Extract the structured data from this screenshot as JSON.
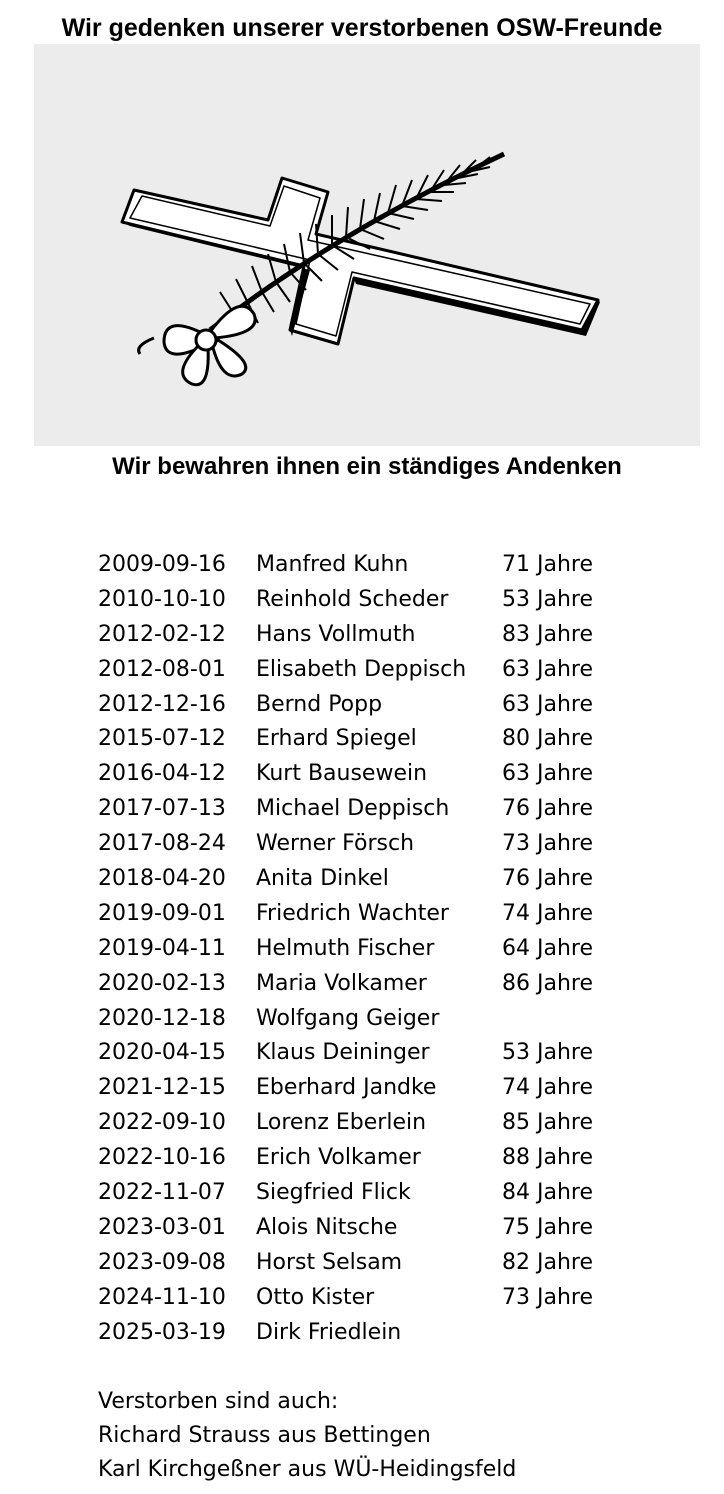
{
  "header": {
    "title": "Wir gedenken unserer verstorbenen OSW-Freunde",
    "subtitle": "Wir bewahren ihnen ein ständiges Andenken"
  },
  "illustration": {
    "icon": "cross-with-palm-branch-icon",
    "background": "#ececec"
  },
  "memorial": {
    "entries": [
      {
        "date": "2009-09-16",
        "name": "Manfred Kuhn",
        "age": "71 Jahre"
      },
      {
        "date": "2010-10-10",
        "name": "Reinhold Scheder",
        "age": "53 Jahre"
      },
      {
        "date": "2012-02-12",
        "name": "Hans Vollmuth",
        "age": "83 Jahre"
      },
      {
        "date": "2012-08-01",
        "name": "Elisabeth Deppisch",
        "age": "63 Jahre"
      },
      {
        "date": "2012-12-16",
        "name": "Bernd Popp",
        "age": "63 Jahre"
      },
      {
        "date": "2015-07-12",
        "name": "Erhard Spiegel",
        "age": "80 Jahre"
      },
      {
        "date": "2016-04-12",
        "name": "Kurt Bausewein",
        "age": "63 Jahre"
      },
      {
        "date": "2017-07-13",
        "name": "Michael Deppisch",
        "age": "76 Jahre"
      },
      {
        "date": "2017-08-24",
        "name": "Werner Försch",
        "age": "73 Jahre"
      },
      {
        "date": "2018-04-20",
        "name": "Anita Dinkel",
        "age": "76 Jahre"
      },
      {
        "date": "2019-09-01",
        "name": "Friedrich Wachter",
        "age": "74 Jahre"
      },
      {
        "date": "2019-04-11",
        "name": "Helmuth Fischer",
        "age": "64 Jahre"
      },
      {
        "date": "2020-02-13",
        "name": "Maria Volkamer",
        "age": "86 Jahre"
      },
      {
        "date": "2020-12-18",
        "name": "Wolfgang Geiger",
        "age": ""
      },
      {
        "date": "2020-04-15",
        "name": "Klaus Deininger",
        "age": "53 Jahre"
      },
      {
        "date": "2021-12-15",
        "name": "Eberhard Jandke",
        "age": "74 Jahre"
      },
      {
        "date": "2022-09-10",
        "name": "Lorenz Eberlein",
        "age": "85 Jahre"
      },
      {
        "date": "2022-10-16",
        "name": "Erich Volkamer",
        "age": "88 Jahre"
      },
      {
        "date": "2022-11-07",
        "name": "Siegfried Flick",
        "age": "84 Jahre"
      },
      {
        "date": "2023-03-01",
        "name": "Alois Nitsche",
        "age": "75 Jahre"
      },
      {
        "date": "2023-09-08",
        "name": "Horst Selsam",
        "age": "82 Jahre"
      },
      {
        "date": "2024-11-10",
        "name": "Otto Kister",
        "age": "73 Jahre"
      },
      {
        "date": "2025-03-19",
        "name": "Dirk Friedlein",
        "age": ""
      }
    ],
    "also_deceased_label": "Verstorben sind auch:",
    "also_deceased": [
      "Richard Strauss aus Bettingen",
      "Karl Kirchgeßner aus WÜ-Heidingsfeld"
    ]
  }
}
